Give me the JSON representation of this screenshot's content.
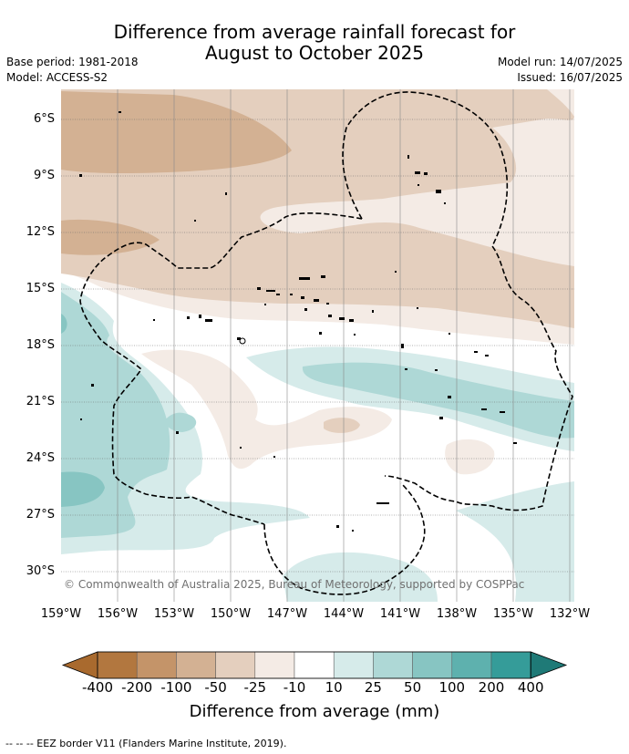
{
  "title_line1": "Difference from average rainfall forecast for",
  "title_line2": "August to October 2025",
  "meta": {
    "base_period": "Base period: 1981-2018",
    "model": "Model: ACCESS-S2",
    "model_run": "Model run: 14/07/2025",
    "issued": "Issued: 16/07/2025"
  },
  "lat_labels": [
    "6°S",
    "9°S",
    "12°S",
    "15°S",
    "18°S",
    "21°S",
    "24°S",
    "27°S",
    "30°S"
  ],
  "lon_labels": [
    "159°W",
    "156°W",
    "153°W",
    "150°W",
    "147°W",
    "144°W",
    "141°W",
    "138°W",
    "135°W",
    "132°W"
  ],
  "copyright": "© Commonwealth of Australia 2025, Bureau of Meteorology, supported by COSPPac",
  "colorbar": {
    "labels": [
      "-400",
      "-200",
      "-100",
      "-50",
      "-25",
      "-10",
      "10",
      "25",
      "50",
      "100",
      "200",
      "400"
    ],
    "colors": [
      "#a96a2e",
      "#b2773f",
      "#c49469",
      "#d3b193",
      "#e4cfbe",
      "#f4ebe5",
      "#ffffff",
      "#d6ebea",
      "#aed8d6",
      "#87c5c2",
      "#5eb1ae",
      "#359c99",
      "#1f7a77"
    ],
    "title": "Difference from average (mm)"
  },
  "footnote": "--  --  -- EEZ border V11 (Flanders Marine Institute, 2019)."
}
